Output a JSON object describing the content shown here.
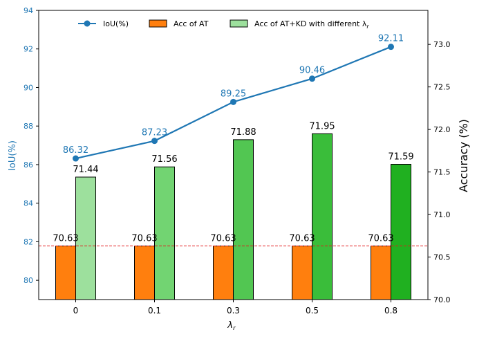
{
  "chart_data": {
    "type": "bar+line",
    "categories": [
      "0",
      "0.1",
      "0.3",
      "0.5",
      "0.8"
    ],
    "xlabel": "λ",
    "xlabel_sub": "r",
    "left_axis": {
      "label": "IoU(%)",
      "ylim": [
        79.0,
        94.0
      ],
      "ticks": [
        80,
        82,
        84,
        86,
        88,
        90,
        92,
        94
      ],
      "color": "#1f77b4"
    },
    "right_axis": {
      "label": "Accuracy (%)",
      "ylim": [
        70.0,
        73.4
      ],
      "ticks": [
        "70.0",
        "70.5",
        "71.0",
        "71.5",
        "72.0",
        "72.5",
        "73.0"
      ]
    },
    "series": [
      {
        "name": "IoU(%)",
        "kind": "line",
        "axis": "left",
        "color": "#1f77b4",
        "values": [
          86.32,
          87.23,
          89.25,
          90.46,
          92.11
        ],
        "labels": [
          "86.32",
          "87.23",
          "89.25",
          "90.46",
          "92.11"
        ]
      },
      {
        "name": "Acc of AT",
        "kind": "bar",
        "axis": "right",
        "color": "#ff7f0e",
        "values": [
          70.63,
          70.63,
          70.63,
          70.63,
          70.63
        ],
        "labels": [
          "70.63",
          "70.63",
          "70.63",
          "70.63",
          "70.63"
        ]
      },
      {
        "name": "Acc of AT+KD with different λ",
        "name_sub": "r",
        "kind": "bar",
        "axis": "right",
        "colors": [
          "#9de09d",
          "#72d472",
          "#52c652",
          "#3abd3a",
          "#20b020"
        ],
        "values": [
          71.44,
          71.56,
          71.88,
          71.95,
          71.59
        ],
        "labels": [
          "71.44",
          "71.56",
          "71.88",
          "71.95",
          "71.59"
        ]
      }
    ],
    "reference_line": {
      "value": 70.63,
      "axis": "right",
      "color": "#e31a1c",
      "style": "dashed"
    },
    "legend": {
      "placement": "top-center"
    }
  }
}
